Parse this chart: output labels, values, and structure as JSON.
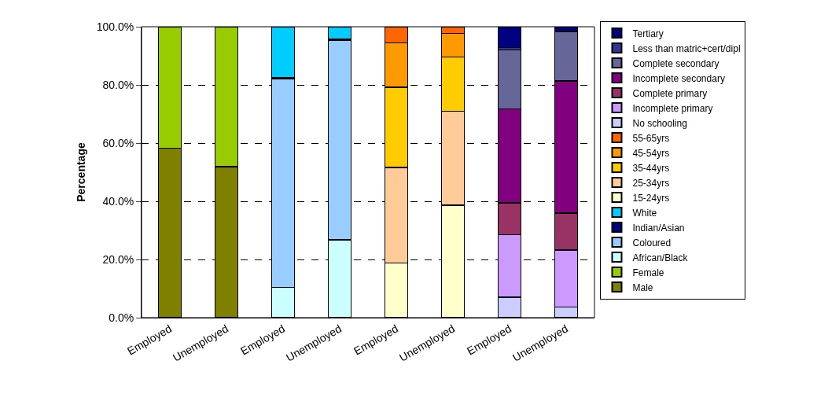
{
  "chart_data": {
    "type": "bar",
    "stacked": true,
    "ylabel": "Percentage",
    "categories": [
      "Employed",
      "Unemployed",
      "Employed",
      "Unemployed",
      "Employed",
      "Unemployed",
      "Employed",
      "Unemployed"
    ],
    "ylim": [
      0,
      100
    ],
    "yticks": [
      {
        "value": 0,
        "label": "0.0%"
      },
      {
        "value": 20,
        "label": "20.0%"
      },
      {
        "value": 40,
        "label": "40.0%"
      },
      {
        "value": 60,
        "label": "60.0%"
      },
      {
        "value": 80,
        "label": "80.0%"
      },
      {
        "value": 100,
        "label": "100.0%"
      }
    ],
    "grid": "y",
    "legend": "right",
    "series": [
      {
        "name": "Male",
        "color": "#808000",
        "values": [
          58.3,
          51.9,
          null,
          null,
          null,
          null,
          null,
          null
        ]
      },
      {
        "name": "Female",
        "color": "#99cc00",
        "values": [
          41.7,
          48.1,
          null,
          null,
          null,
          null,
          null,
          null
        ]
      },
      {
        "name": "African/Black",
        "color": "#ccffff",
        "values": [
          null,
          null,
          10.4,
          26.7,
          null,
          null,
          null,
          null
        ]
      },
      {
        "name": "Coloured",
        "color": "#99ccff",
        "values": [
          null,
          null,
          71.8,
          68.6,
          null,
          null,
          null,
          null
        ]
      },
      {
        "name": "Indian/Asian",
        "color": "#000080",
        "values": [
          null,
          null,
          0.4,
          0.4,
          null,
          null,
          null,
          null
        ]
      },
      {
        "name": "White",
        "color": "#00ccff",
        "values": [
          null,
          null,
          17.4,
          4.3,
          null,
          null,
          null,
          null
        ]
      },
      {
        "name": "15-24yrs",
        "color": "#ffffcc",
        "values": [
          null,
          null,
          null,
          null,
          18.8,
          38.7,
          null,
          null
        ]
      },
      {
        "name": "25-34yrs",
        "color": "#ffcc99",
        "values": [
          null,
          null,
          null,
          null,
          32.8,
          32.3,
          null,
          null
        ]
      },
      {
        "name": "35-44yrs",
        "color": "#ffcc00",
        "values": [
          null,
          null,
          null,
          null,
          27.6,
          18.6,
          null,
          null
        ]
      },
      {
        "name": "45-54yrs",
        "color": "#ff9900",
        "values": [
          null,
          null,
          null,
          null,
          15.2,
          8.1,
          null,
          null
        ]
      },
      {
        "name": "55-65yrs",
        "color": "#ff6600",
        "values": [
          null,
          null,
          null,
          null,
          5.6,
          2.3,
          null,
          null
        ]
      },
      {
        "name": "No schooling",
        "color": "#ccccff",
        "values": [
          null,
          null,
          null,
          null,
          null,
          null,
          7.0,
          3.6
        ]
      },
      {
        "name": "Incomplete primary",
        "color": "#cc99ff",
        "values": [
          null,
          null,
          null,
          null,
          null,
          null,
          21.5,
          19.7
        ]
      },
      {
        "name": "Complete primary",
        "color": "#993366",
        "values": [
          null,
          null,
          null,
          null,
          null,
          null,
          10.9,
          12.7
        ]
      },
      {
        "name": "Incomplete secondary",
        "color": "#800080",
        "values": [
          null,
          null,
          null,
          null,
          null,
          null,
          32.4,
          45.4
        ]
      },
      {
        "name": "Complete secondary",
        "color": "#666699",
        "values": [
          null,
          null,
          null,
          null,
          null,
          null,
          20.2,
          16.8
        ]
      },
      {
        "name": "Less than matric+cert/dipl",
        "color": "#333399",
        "values": [
          null,
          null,
          null,
          null,
          null,
          null,
          0.8,
          0.3
        ]
      },
      {
        "name": "Tertiary",
        "color": "#000080",
        "values": [
          null,
          null,
          null,
          null,
          null,
          null,
          7.2,
          1.5
        ]
      }
    ]
  }
}
